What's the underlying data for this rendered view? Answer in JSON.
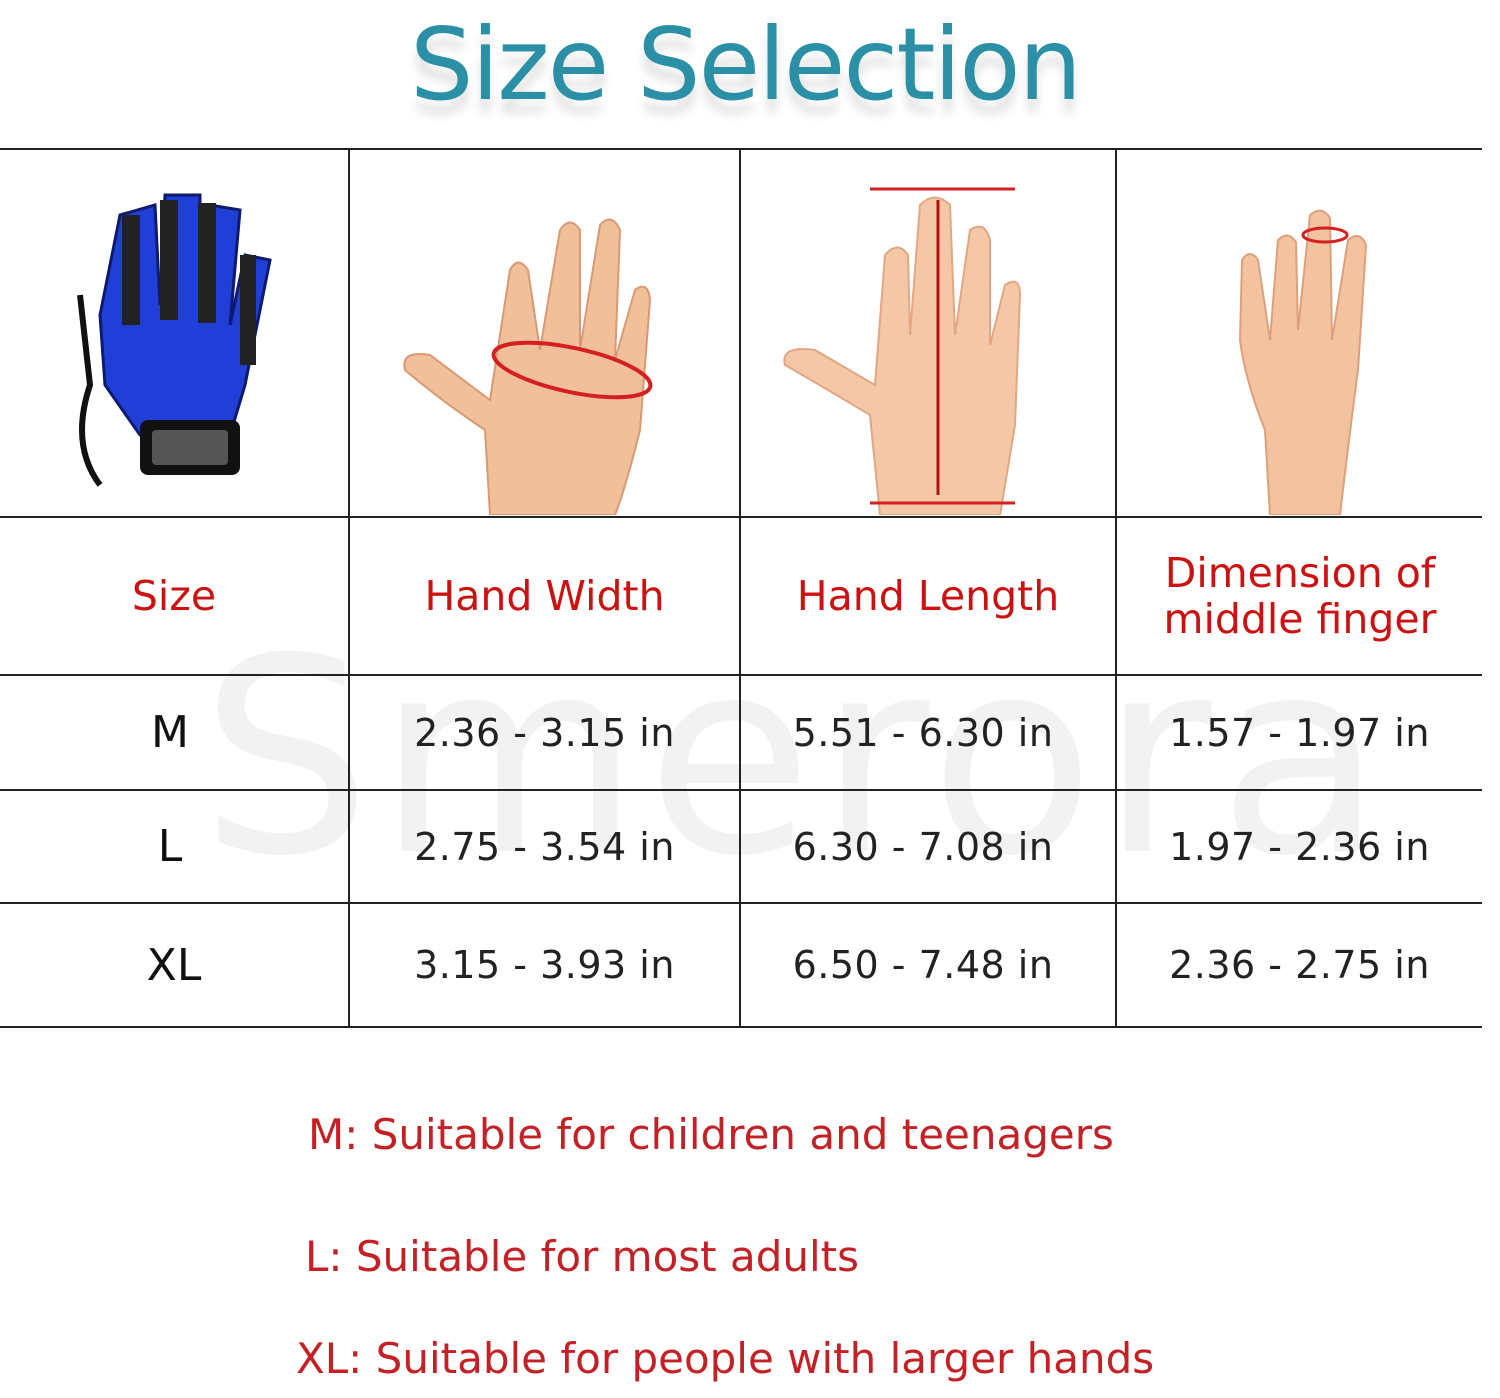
{
  "title": "Size Selection",
  "watermark": "Smerora",
  "colors": {
    "title": "#2b8fa6",
    "header": "#cc1111",
    "note": "#c42126",
    "glove": "#1f3fd6",
    "marker": "#d42020"
  },
  "images": [
    {
      "icon": "rehab-glove-icon"
    },
    {
      "icon": "hand-width-measure-icon"
    },
    {
      "icon": "hand-length-measure-icon"
    },
    {
      "icon": "middle-finger-measure-icon"
    }
  ],
  "table": {
    "headers": [
      "Size",
      "Hand Width",
      "Hand Length",
      "Dimension of middle finger"
    ],
    "rows": [
      {
        "size": "M",
        "width": "2.36 - 3.15 in",
        "length": "5.51 - 6.30 in",
        "finger": "1.57 - 1.97 in"
      },
      {
        "size": "L",
        "width": "2.75 - 3.54 in",
        "length": "6.30 - 7.08 in",
        "finger": "1.97 - 2.36 in"
      },
      {
        "size": "XL",
        "width": "3.15 - 3.93 in",
        "length": "6.50 - 7.48 in",
        "finger": "2.36 - 2.75 in"
      }
    ]
  },
  "notes": [
    "M: Suitable for children and teenagers",
    "L: Suitable for most adults",
    "XL: Suitable for people with larger hands"
  ]
}
